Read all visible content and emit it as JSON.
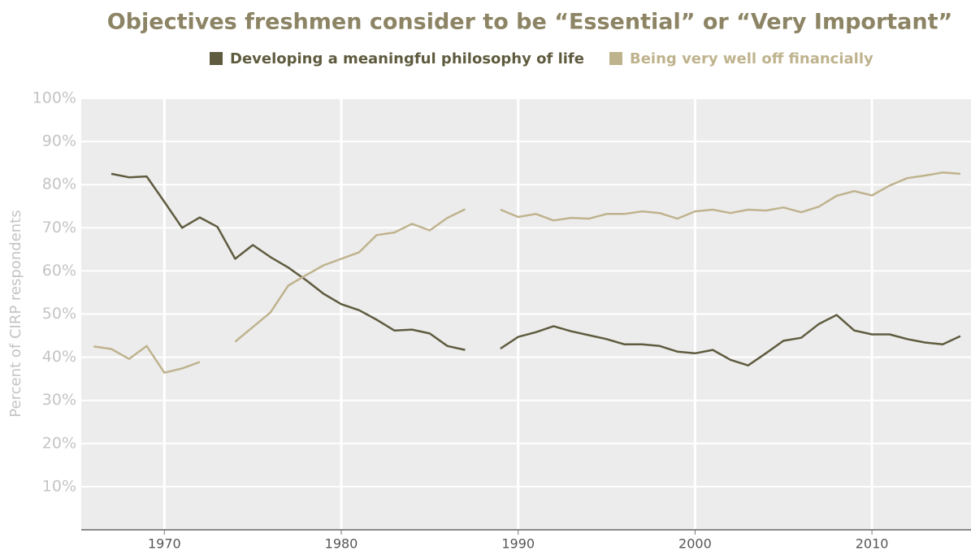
{
  "chart_data": {
    "type": "line",
    "title": "Objectives freshmen consider to be “Essential” or “Very Important”",
    "ylabel": "Percent of CIRP respondents",
    "x": [
      1966,
      1967,
      1968,
      1969,
      1970,
      1971,
      1972,
      1973,
      1974,
      1975,
      1976,
      1977,
      1978,
      1979,
      1980,
      1981,
      1982,
      1983,
      1984,
      1985,
      1986,
      1987,
      1988,
      1989,
      1990,
      1991,
      1992,
      1993,
      1994,
      1995,
      1996,
      1997,
      1998,
      1999,
      2000,
      2001,
      2002,
      2003,
      2004,
      2005,
      2006,
      2007,
      2008,
      2009,
      2010,
      2011,
      2012,
      2013,
      2014,
      2015
    ],
    "series": [
      {
        "name": "Developing a meaningful philosophy of life",
        "color": "#5f5b3f",
        "values": [
          null,
          82.5,
          81.7,
          81.9,
          76,
          70,
          72.4,
          70.2,
          62.8,
          66,
          63.2,
          60.8,
          57.9,
          54.7,
          52.3,
          50.9,
          48.7,
          46.2,
          46.4,
          45.5,
          42.6,
          41.7,
          null,
          42,
          44.7,
          45.8,
          47.2,
          46,
          45.1,
          44.2,
          43,
          43,
          42.6,
          41.3,
          40.9,
          41.7,
          39.4,
          38.1,
          40.9,
          43.8,
          44.5,
          47.7,
          49.8,
          46.2,
          45.3,
          45.3,
          44.2,
          43.4,
          43,
          44.9
        ]
      },
      {
        "name": "Being very well off financially",
        "color": "#bfb38e",
        "values": [
          42.5,
          41.9,
          39.6,
          42.6,
          36.4,
          37.4,
          38.9,
          null,
          43.6,
          47,
          50.4,
          56.6,
          59,
          61.3,
          62.8,
          64.3,
          68.3,
          68.9,
          70.9,
          69.4,
          72.3,
          74.3,
          null,
          74.2,
          72.5,
          73.2,
          71.7,
          72.3,
          72.1,
          73.2,
          73.2,
          73.8,
          73.4,
          72.1,
          73.8,
          74.2,
          73.4,
          74.2,
          74,
          74.7,
          73.6,
          74.9,
          77.4,
          78.5,
          77.5,
          79.8,
          81.5,
          82.1,
          82.8,
          82.5
        ]
      }
    ],
    "xlim": [
      1965.3,
      2015.6
    ],
    "xticks": [
      1970,
      1980,
      1990,
      2000,
      2010
    ],
    "ylim": [
      0,
      100
    ],
    "yticks": [
      {
        "value": 10,
        "label": "10%"
      },
      {
        "value": 20,
        "label": "20%"
      },
      {
        "value": 30,
        "label": "30%"
      },
      {
        "value": 40,
        "label": "40%"
      },
      {
        "value": 50,
        "label": "50%"
      },
      {
        "value": 60,
        "label": "60%"
      },
      {
        "value": 70,
        "label": "70%"
      },
      {
        "value": 80,
        "label": "80%"
      },
      {
        "value": 90,
        "label": "90%"
      },
      {
        "value": 100,
        "label": "100%"
      }
    ],
    "grid": true,
    "legend": "top"
  }
}
